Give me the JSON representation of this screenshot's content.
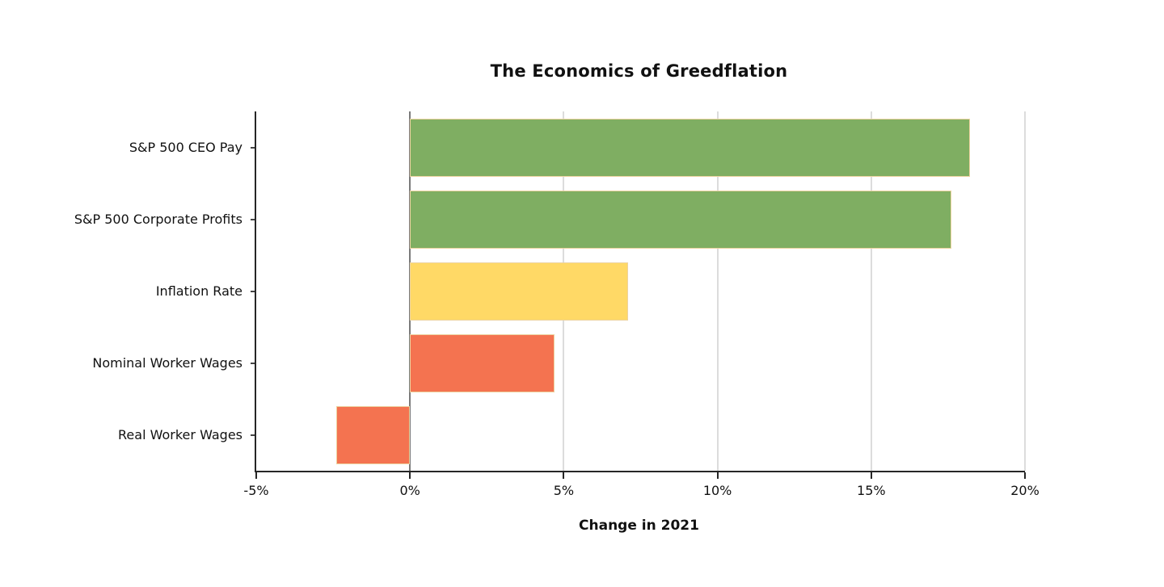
{
  "page": {
    "background": "#ffffff"
  },
  "chart_data": {
    "type": "bar",
    "orientation": "horizontal",
    "title": "The Economics of Greedflation",
    "xlabel": "Change in 2021",
    "ylabel": "",
    "categories": [
      "S&P 500 CEO Pay",
      "S&P 500 Corporate Profits",
      "Inflation Rate",
      "Nominal Worker Wages",
      "Real Worker Wages"
    ],
    "values": [
      18.2,
      17.6,
      7.1,
      4.7,
      -2.4
    ],
    "unit": "%",
    "xlim": [
      -5,
      20
    ],
    "xticks": [
      {
        "value": -5,
        "label": "-5%"
      },
      {
        "value": 0,
        "label": "0%"
      },
      {
        "value": 5,
        "label": "5%"
      },
      {
        "value": 10,
        "label": "10%"
      },
      {
        "value": 15,
        "label": "15%"
      },
      {
        "value": 20,
        "label": "20%"
      }
    ],
    "grid": true,
    "legend": null,
    "bar_colors": [
      "#7fae62",
      "#7fae62",
      "#ffd966",
      "#f47350",
      "#f47350"
    ],
    "bar_border_color": "#ecd3a0",
    "colors": {
      "axis": "#262626",
      "gridline": "#dcdcdc",
      "zero_line": "#7a7a7a",
      "text": "#111111",
      "background": "#ffffff"
    }
  }
}
